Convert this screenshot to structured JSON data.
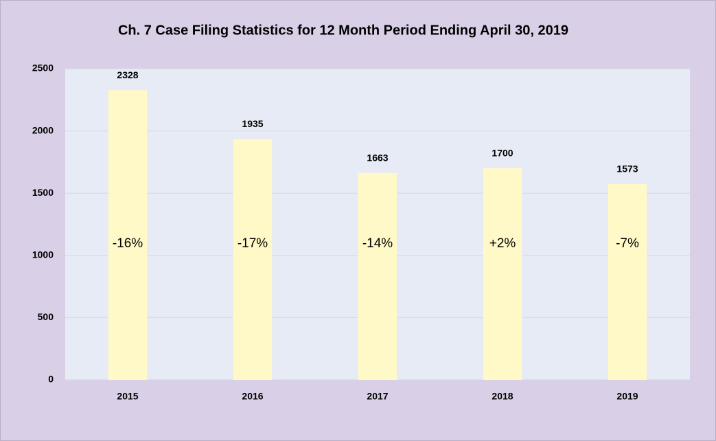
{
  "chart_data": {
    "type": "bar",
    "title": "Ch. 7 Case Filing Statistics for 12 Month Period Ending April 30, 2019",
    "categories": [
      "2015",
      "2016",
      "2017",
      "2018",
      "2019"
    ],
    "values": [
      2328,
      1935,
      1663,
      1700,
      1573
    ],
    "bar_annotations": [
      "-16%",
      "-17%",
      "-14%",
      "+2%",
      "-7%"
    ],
    "color": "#fff9c8",
    "ylim": [
      0,
      2500
    ],
    "yticks": [
      0,
      500,
      1000,
      1500,
      2000,
      2500
    ],
    "grid": true
  }
}
